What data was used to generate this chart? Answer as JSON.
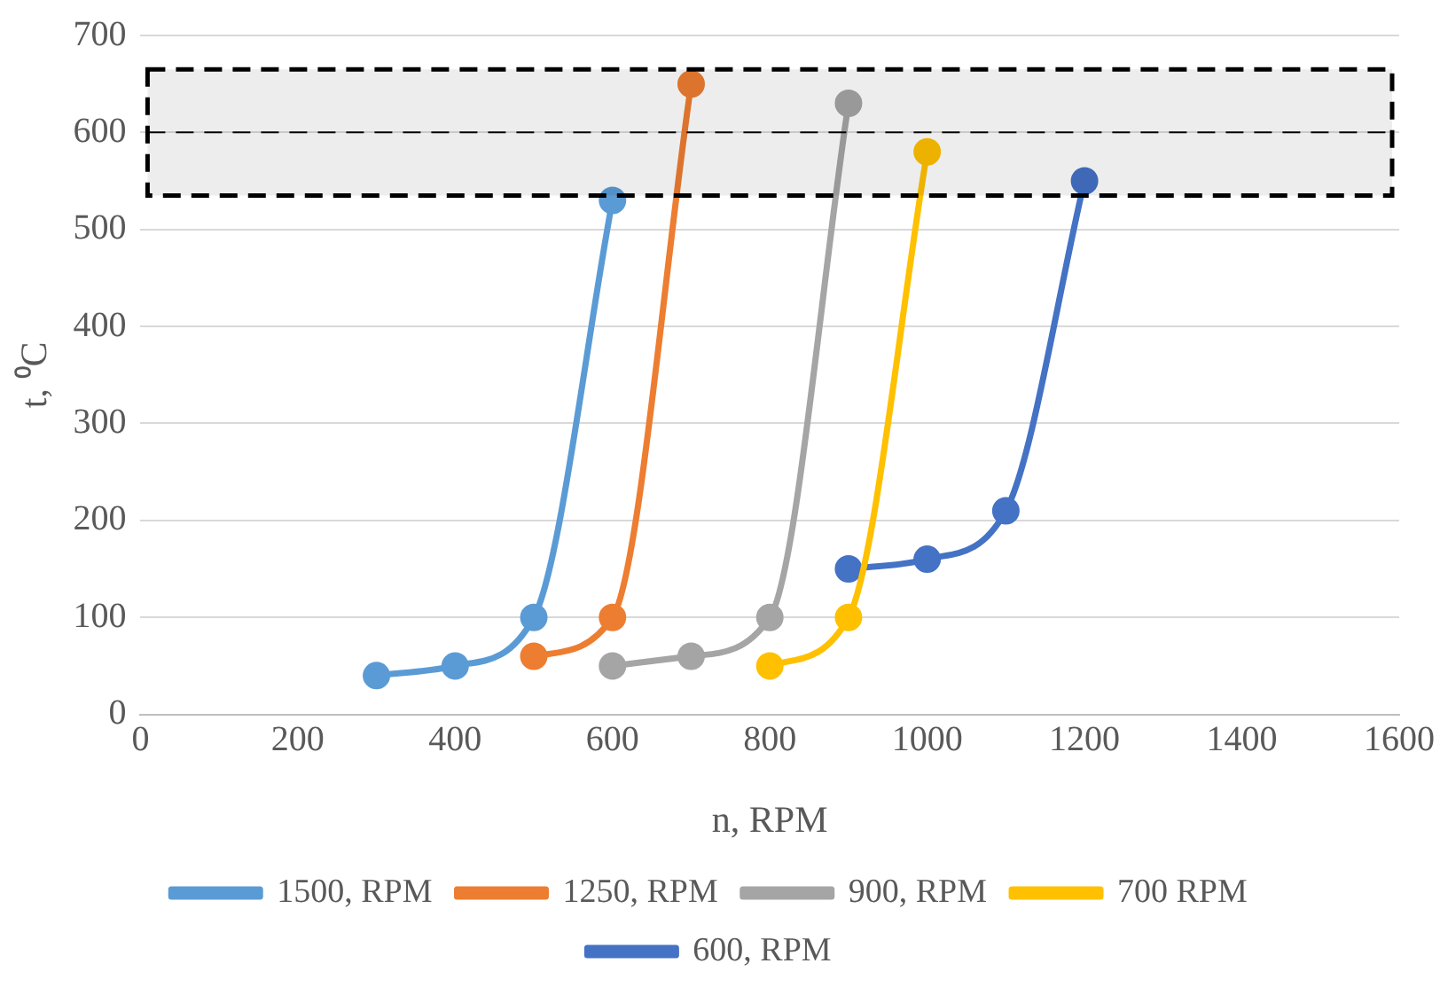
{
  "chart_data": {
    "type": "line",
    "xlabel": "n, RPM",
    "ylabel": "t, ⁰C",
    "xlim": [
      0,
      1600
    ],
    "xticks": [
      0,
      200,
      400,
      600,
      800,
      1000,
      1200,
      1400,
      1600
    ],
    "ylim": [
      0,
      700
    ],
    "yticks": [
      0,
      100,
      200,
      300,
      400,
      500,
      600,
      700
    ],
    "grid": "y",
    "legend": "bottom",
    "marker": "circle",
    "line_style": "solid",
    "series": [
      {
        "name": "1500, RPM",
        "color": "#5b9bd5",
        "x": [
          300,
          400,
          500,
          600
        ],
        "values": [
          40,
          50,
          100,
          530
        ]
      },
      {
        "name": "1250, RPM",
        "color": "#ed7d31",
        "x": [
          500,
          600,
          700
        ],
        "values": [
          60,
          100,
          650
        ]
      },
      {
        "name": "900, RPM",
        "color": "#a5a5a5",
        "x": [
          600,
          700,
          800,
          900
        ],
        "values": [
          50,
          60,
          100,
          630
        ]
      },
      {
        "name": "700 RPM",
        "color": "#ffc000",
        "x": [
          800,
          900,
          1000
        ],
        "values": [
          50,
          100,
          580
        ]
      },
      {
        "name": "600, RPM",
        "color": "#4472c4",
        "x": [
          900,
          1000,
          1100,
          1200
        ],
        "values": [
          150,
          160,
          210,
          550
        ]
      }
    ],
    "bands": [
      {
        "axis": "y",
        "from": 535,
        "to": 665,
        "color": "#000000"
      }
    ],
    "ref_lines": [
      {
        "axis": "y",
        "value": 600,
        "line_style": "dashed"
      }
    ]
  }
}
